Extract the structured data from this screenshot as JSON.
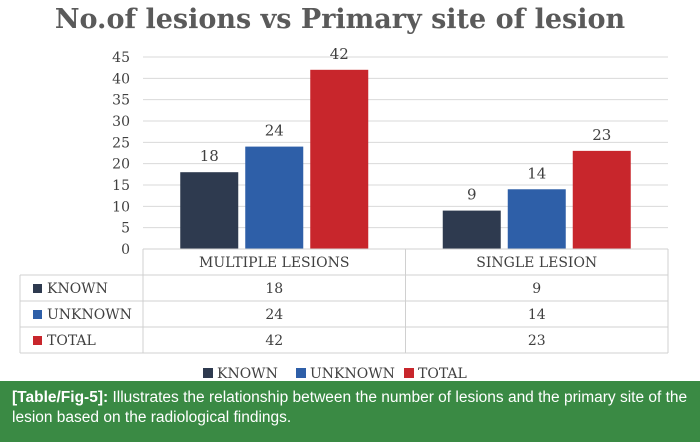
{
  "chart_data": {
    "type": "bar",
    "title": "No.of lesions vs Primary site of lesion",
    "categories": [
      "MULTIPLE LESIONS",
      "SINGLE LESION"
    ],
    "series": [
      {
        "name": "KNOWN",
        "values": [
          18,
          9
        ],
        "color": "#2e3a4f"
      },
      {
        "name": "UNKNOWN",
        "values": [
          24,
          14
        ],
        "color": "#2e5fa8"
      },
      {
        "name": "TOTAL",
        "values": [
          42,
          23
        ],
        "color": "#c8262c"
      }
    ],
    "ylim": [
      0,
      45
    ],
    "yticks": [
      0,
      5,
      10,
      15,
      20,
      25,
      30,
      35,
      40,
      45
    ],
    "grid": true,
    "data_table": true,
    "legend_position": "bottom"
  },
  "caption": {
    "label": "[Table/Fig-5]:",
    "text": "Illustrates the relationship between the number of lesions and the primary site of the lesion based on the radiological findings."
  }
}
